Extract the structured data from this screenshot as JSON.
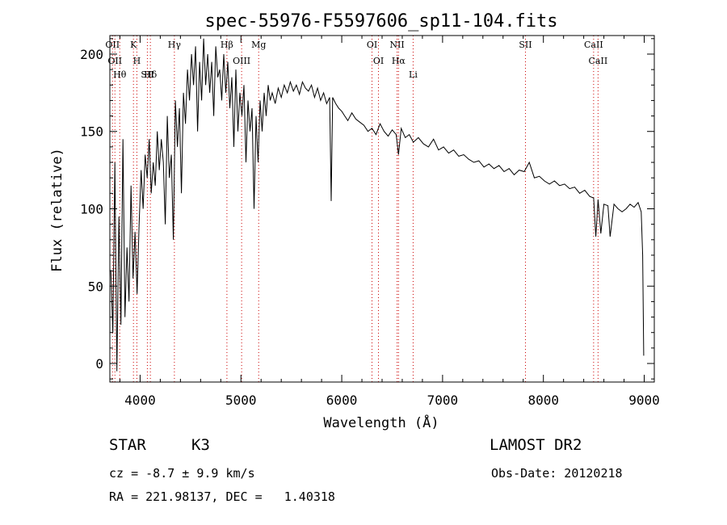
{
  "chart_data": {
    "type": "line",
    "title": "spec-55976-F5597606_sp11-104.fits",
    "xlabel": "Wavelength (Å)",
    "ylabel": "Flux (relative)",
    "xlim": [
      3700,
      9100
    ],
    "ylim": [
      -12,
      212
    ],
    "xticks": [
      4000,
      5000,
      6000,
      7000,
      8000,
      9000
    ],
    "yticks": [
      0,
      50,
      100,
      150,
      200
    ],
    "grid": false,
    "line_color": "#000000",
    "marker_color": "#cc0000",
    "series": [
      {
        "x": [
          3710,
          3730,
          3750,
          3770,
          3790,
          3810,
          3830,
          3850,
          3870,
          3890,
          3910,
          3930,
          3950,
          3970,
          3990,
          4010,
          4030,
          4050,
          4070,
          4090,
          4110,
          4130,
          4150,
          4170,
          4190,
          4210,
          4230,
          4250,
          4270,
          4290,
          4310,
          4330,
          4350,
          4370,
          4390,
          4410,
          4430,
          4450,
          4470,
          4490,
          4510,
          4530,
          4550,
          4570,
          4590,
          4610,
          4630,
          4650,
          4670,
          4690,
          4710,
          4730,
          4750,
          4770,
          4790,
          4810,
          4830,
          4850,
          4870,
          4890,
          4910,
          4930,
          4950,
          4970,
          4990,
          5010,
          5030,
          5050,
          5070,
          5090,
          5110,
          5130,
          5150,
          5170,
          5190,
          5210,
          5230,
          5250,
          5270,
          5290,
          5310,
          5340,
          5370,
          5400,
          5430,
          5460,
          5490,
          5520,
          5550,
          5580,
          5610,
          5640,
          5670,
          5700,
          5730,
          5760,
          5790,
          5820,
          5850,
          5880,
          5895,
          5910,
          5940,
          5970,
          6000,
          6030,
          6060,
          6100,
          6140,
          6180,
          6220,
          6260,
          6300,
          6340,
          6380,
          6420,
          6460,
          6500,
          6540,
          6563,
          6590,
          6630,
          6670,
          6710,
          6760,
          6810,
          6860,
          6910,
          6960,
          7010,
          7060,
          7110,
          7160,
          7210,
          7260,
          7310,
          7360,
          7410,
          7460,
          7510,
          7560,
          7610,
          7660,
          7710,
          7760,
          7810,
          7860,
          7910,
          7960,
          8010,
          8060,
          8110,
          8160,
          8210,
          8260,
          8310,
          8360,
          8410,
          8460,
          8498,
          8520,
          8542,
          8570,
          8600,
          8640,
          8662,
          8700,
          8740,
          8780,
          8820,
          8860,
          8900,
          8940,
          8970,
          8985,
          8995
        ],
        "y": [
          60,
          20,
          130,
          -5,
          95,
          25,
          145,
          30,
          75,
          40,
          115,
          55,
          85,
          45,
          90,
          125,
          100,
          135,
          120,
          145,
          110,
          130,
          115,
          150,
          125,
          145,
          130,
          90,
          160,
          120,
          135,
          80,
          170,
          140,
          165,
          110,
          175,
          155,
          190,
          170,
          200,
          180,
          205,
          150,
          195,
          170,
          210,
          180,
          200,
          175,
          195,
          160,
          205,
          185,
          190,
          170,
          200,
          175,
          195,
          165,
          185,
          140,
          190,
          150,
          175,
          160,
          180,
          130,
          170,
          150,
          165,
          100,
          160,
          130,
          170,
          150,
          175,
          160,
          180,
          170,
          175,
          168,
          178,
          172,
          180,
          175,
          182,
          176,
          180,
          174,
          182,
          178,
          176,
          180,
          172,
          178,
          170,
          175,
          168,
          172,
          105,
          172,
          168,
          165,
          163,
          160,
          157,
          162,
          158,
          156,
          154,
          150,
          152,
          148,
          155,
          150,
          147,
          151,
          148,
          135,
          152,
          146,
          148,
          143,
          146,
          142,
          140,
          145,
          138,
          140,
          136,
          138,
          134,
          135,
          132,
          130,
          131,
          127,
          129,
          126,
          128,
          124,
          126,
          122,
          125,
          124,
          130,
          120,
          121,
          118,
          116,
          118,
          115,
          116,
          113,
          114,
          110,
          112,
          108,
          107,
          82,
          106,
          84,
          103,
          102,
          82,
          103,
          100,
          98,
          100,
          103,
          101,
          104,
          98,
          70,
          5
        ]
      }
    ],
    "line_markers": [
      {
        "x": 3726,
        "label": "OII"
      },
      {
        "x": 3750,
        "label": "OII"
      },
      {
        "x": 3798,
        "label": "Hθ"
      },
      {
        "x": 3934,
        "label": "K"
      },
      {
        "x": 3968,
        "label": "H"
      },
      {
        "x": 4072,
        "label": "SII"
      },
      {
        "x": 4102,
        "label": "Hδ"
      },
      {
        "x": 4340,
        "label": "Hγ"
      },
      {
        "x": 4861,
        "label": "Hβ"
      },
      {
        "x": 5007,
        "label": "OIII"
      },
      {
        "x": 5176,
        "label": "Mg"
      },
      {
        "x": 6300,
        "label": "OI"
      },
      {
        "x": 6364,
        "label": "OI"
      },
      {
        "x": 6549,
        "label": "NII"
      },
      {
        "x": 6563,
        "label": "Hα"
      },
      {
        "x": 6708,
        "label": "Li"
      },
      {
        "x": 7822,
        "label": "SII"
      },
      {
        "x": 8498,
        "label": "CaII"
      },
      {
        "x": 8542,
        "label": "CaII"
      }
    ]
  },
  "info": {
    "object_class": "STAR",
    "subclass": "K3",
    "survey": "LAMOST DR2",
    "velocity": "cz = -8.7 ± 9.9 km/s",
    "obs_date": "Obs-Date: 20120218",
    "coords": "RA = 221.98137, DEC =   1.40318"
  }
}
